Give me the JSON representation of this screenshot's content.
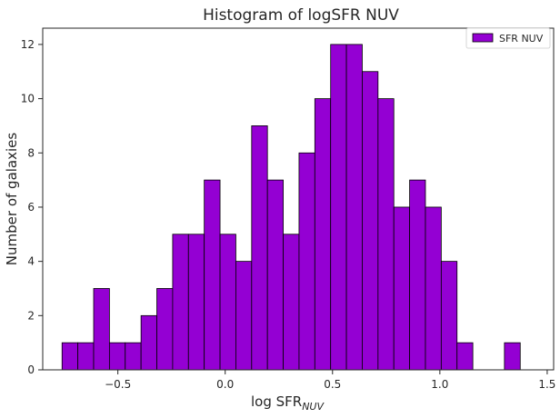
{
  "chart_data": {
    "type": "bar",
    "title": "Histogram of logSFR NUV",
    "xlabel": "log SFR",
    "xlabel_sub": "NUV",
    "ylabel": "Number of galaxies",
    "legend": {
      "label": "SFR NUV",
      "placement": "top-right"
    },
    "xlim": [
      -0.85,
      1.53
    ],
    "ylim": [
      0,
      12.6
    ],
    "xticks": [
      -0.5,
      0.0,
      0.5,
      1.0,
      1.5
    ],
    "xtick_labels": [
      "−0.5",
      "0.0",
      "0.5",
      "1.0",
      "1.5"
    ],
    "yticks": [
      0,
      2,
      4,
      6,
      8,
      10,
      12
    ],
    "ytick_labels": [
      "0",
      "2",
      "4",
      "6",
      "8",
      "10",
      "12"
    ],
    "grid": false,
    "bin_start": -0.76,
    "bin_width": 0.0736,
    "counts": [
      1,
      1,
      3,
      1,
      1,
      2,
      3,
      5,
      5,
      7,
      5,
      4,
      9,
      7,
      5,
      8,
      10,
      12,
      12,
      11,
      10,
      6,
      7,
      6,
      4,
      1,
      0,
      0,
      1
    ],
    "series": [
      {
        "name": "SFR NUV",
        "color": "#9400d3"
      }
    ],
    "bar_color": "#9400d3",
    "edge_color": "#000000"
  }
}
